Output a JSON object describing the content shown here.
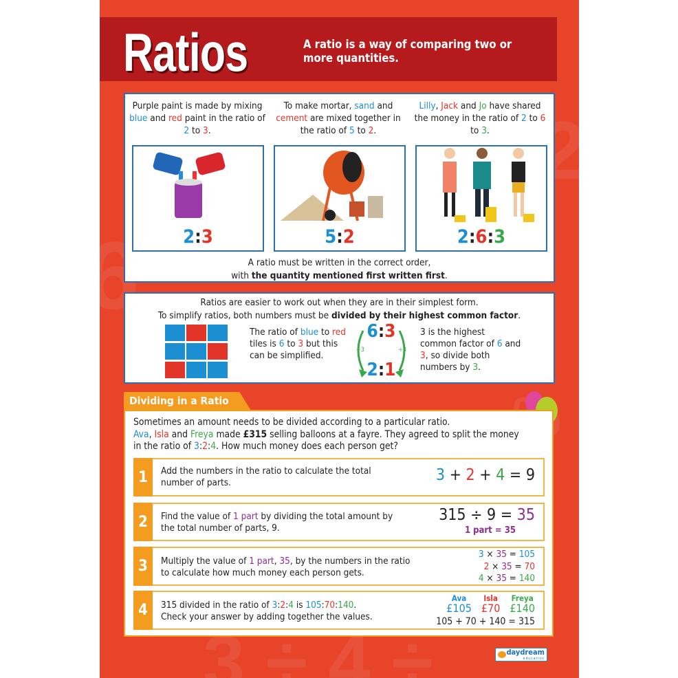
{
  "header": {
    "title": "Ratios",
    "subtitle": "A ratio is a way of comparing two or more quantities."
  },
  "colors": {
    "background": "#e8442a",
    "band": "#b51a1c",
    "panel_border": "#2f6fb0",
    "accent_orange": "#f39c1f",
    "blue": "#1b8fd2",
    "red": "#e3342a",
    "green": "#3aa84a",
    "purple": "#8e2d8f"
  },
  "examples": [
    {
      "text": [
        [
          "Purple paint is made by mixing ",
          "k"
        ],
        [
          "blue",
          "b"
        ],
        [
          " and ",
          "k"
        ],
        [
          "red",
          "r"
        ],
        [
          " paint in the ratio of ",
          "k"
        ],
        [
          "2",
          "b"
        ],
        [
          " to ",
          "k"
        ],
        [
          "3",
          "r"
        ],
        [
          ".",
          "k"
        ]
      ],
      "ratio": [
        [
          "2",
          "b"
        ],
        [
          ":",
          "k"
        ],
        [
          "3",
          "r"
        ]
      ],
      "image": "paint-cans"
    },
    {
      "text": [
        [
          "To make mortar, ",
          "k"
        ],
        [
          "sand",
          "b"
        ],
        [
          " and ",
          "k"
        ],
        [
          "cement",
          "r"
        ],
        [
          " are mixed together in the ratio of ",
          "k"
        ],
        [
          "5",
          "b"
        ],
        [
          " to ",
          "k"
        ],
        [
          "2",
          "r"
        ],
        [
          ".",
          "k"
        ]
      ],
      "ratio": [
        [
          "5",
          "b"
        ],
        [
          ":",
          "k"
        ],
        [
          "2",
          "r"
        ]
      ],
      "image": "cement-mixer"
    },
    {
      "text": [
        [
          "Lilly",
          "b"
        ],
        [
          ", ",
          "k"
        ],
        [
          "Jack",
          "r"
        ],
        [
          " and ",
          "k"
        ],
        [
          "Jo",
          "g"
        ],
        [
          " have shared the money in the ratio of ",
          "k"
        ],
        [
          "2",
          "b"
        ],
        [
          " to ",
          "k"
        ],
        [
          "6",
          "r"
        ],
        [
          " to ",
          "k"
        ],
        [
          "3",
          "g"
        ],
        [
          ".",
          "k"
        ]
      ],
      "ratio": [
        [
          "2",
          "b"
        ],
        [
          ":",
          "k"
        ],
        [
          "6",
          "r"
        ],
        [
          ":",
          "k"
        ],
        [
          "3",
          "g"
        ]
      ],
      "image": "three-people-with-coins"
    }
  ],
  "order_note": [
    [
      "A ratio must be written in the correct order,",
      "k"
    ],
    [
      "\n",
      "k"
    ],
    [
      "with ",
      "k"
    ],
    [
      "the quantity mentioned first written first",
      "bold"
    ],
    [
      ".",
      "k"
    ]
  ],
  "simplify": {
    "intro": [
      [
        "Ratios are easier to work out when they are in their simplest form.",
        "k"
      ],
      [
        "\n",
        "k"
      ],
      [
        "To simplify ratios, both numbers must be ",
        "k"
      ],
      [
        "divided by their highest common factor",
        "bold"
      ],
      [
        ".",
        "k"
      ]
    ],
    "tiles": [
      "blue",
      "red",
      "blue",
      "blue",
      "blue",
      "red",
      "red",
      "blue",
      "blue"
    ],
    "left_text": [
      [
        "The ratio of ",
        "k"
      ],
      [
        "blue",
        "b"
      ],
      [
        " to ",
        "k"
      ],
      [
        "red",
        "r"
      ],
      [
        " tiles is ",
        "k"
      ],
      [
        "6",
        "b"
      ],
      [
        " to ",
        "k"
      ],
      [
        "3",
        "r"
      ],
      [
        " but this can be simplified.",
        "k"
      ]
    ],
    "from": [
      [
        "6",
        "b"
      ],
      [
        ":",
        "k"
      ],
      [
        "3",
        "r"
      ]
    ],
    "to": [
      [
        "2",
        "b"
      ],
      [
        ":",
        "k"
      ],
      [
        "1",
        "r"
      ]
    ],
    "divisor_left": "÷3",
    "divisor_right": "÷3",
    "right_text": [
      [
        "3 is the highest common factor of ",
        "k"
      ],
      [
        "6",
        "b"
      ],
      [
        " and ",
        "k"
      ],
      [
        "3",
        "r"
      ],
      [
        ", so divide both numbers by ",
        "k"
      ],
      [
        "3",
        "g"
      ],
      [
        ".",
        "k"
      ]
    ]
  },
  "dividing": {
    "heading": "Dividing in a Ratio",
    "intro": [
      [
        "Sometimes an amount needs to be divided according to a particular ratio.",
        "k"
      ],
      [
        "\n",
        "k"
      ],
      [
        "Ava",
        "b"
      ],
      [
        ", ",
        "k"
      ],
      [
        "Isla",
        "r"
      ],
      [
        " and ",
        "k"
      ],
      [
        "Freya",
        "g"
      ],
      [
        " made ",
        "k"
      ],
      [
        "£315",
        "bold"
      ],
      [
        " selling balloons at a fayre. They agreed to split the money in the ratio of ",
        "k"
      ],
      [
        "3",
        "b"
      ],
      [
        ":",
        "k"
      ],
      [
        "2",
        "r"
      ],
      [
        ":",
        "k"
      ],
      [
        "4",
        "g"
      ],
      [
        ". How much money does each person get?",
        "k"
      ]
    ],
    "steps": [
      {
        "number": "1",
        "text": [
          [
            "Add the numbers in the ratio to calculate the total number of parts.",
            "k"
          ]
        ],
        "equation": [
          [
            "3",
            "b"
          ],
          [
            " + ",
            "k"
          ],
          [
            "2",
            "r"
          ],
          [
            " + ",
            "k"
          ],
          [
            "4",
            "g"
          ],
          [
            " = 9",
            "k"
          ]
        ]
      },
      {
        "number": "2",
        "text": [
          [
            "Find the value of ",
            "k"
          ],
          [
            "1 part",
            "p"
          ],
          [
            " by dividing the total amount by the total number of parts, 9.",
            "k"
          ]
        ],
        "equation": [
          [
            "315 ÷ 9 = ",
            "k"
          ],
          [
            "35",
            "p"
          ]
        ],
        "sub": [
          [
            "1 part = ",
            "p"
          ],
          [
            "35",
            "p"
          ]
        ]
      },
      {
        "number": "3",
        "text": [
          [
            "Multiply the value of ",
            "k"
          ],
          [
            "1 part",
            "p"
          ],
          [
            ", ",
            "k"
          ],
          [
            "35",
            "p"
          ],
          [
            ", by the numbers in the ratio to calculate how much money each person gets.",
            "k"
          ]
        ],
        "lines": [
          [
            [
              "3",
              "b"
            ],
            [
              " × ",
              "k"
            ],
            [
              "35",
              "p"
            ],
            [
              " = ",
              "k"
            ],
            [
              "105",
              "b"
            ]
          ],
          [
            [
              "2",
              "r"
            ],
            [
              " × ",
              "k"
            ],
            [
              "35",
              "p"
            ],
            [
              " = ",
              "k"
            ],
            [
              "70",
              "r"
            ]
          ],
          [
            [
              "4",
              "g"
            ],
            [
              " × ",
              "k"
            ],
            [
              "35",
              "p"
            ],
            [
              " = ",
              "k"
            ],
            [
              "140",
              "g"
            ]
          ]
        ]
      },
      {
        "number": "4",
        "text": [
          [
            "315 divided in the ratio of ",
            "k"
          ],
          [
            "3",
            "b"
          ],
          [
            ":",
            "k"
          ],
          [
            "2",
            "r"
          ],
          [
            ":",
            "k"
          ],
          [
            "4",
            "g"
          ],
          [
            " is ",
            "k"
          ],
          [
            "105",
            "b"
          ],
          [
            ":",
            "k"
          ],
          [
            "70",
            "r"
          ],
          [
            ":",
            "k"
          ],
          [
            "140",
            "g"
          ],
          [
            ".",
            "k"
          ],
          [
            "\n",
            "k"
          ],
          [
            "Check your answer by adding together the values.",
            "k"
          ]
        ],
        "people": [
          {
            "name": "Ava",
            "amount": "£105",
            "c": "b"
          },
          {
            "name": "Isla",
            "amount": "£70",
            "c": "r"
          },
          {
            "name": "Freya",
            "amount": "£140",
            "c": "g"
          }
        ],
        "check": "105 + 70 + 140 = 315"
      }
    ]
  },
  "logo": {
    "text": "daydream",
    "sub": "education"
  }
}
